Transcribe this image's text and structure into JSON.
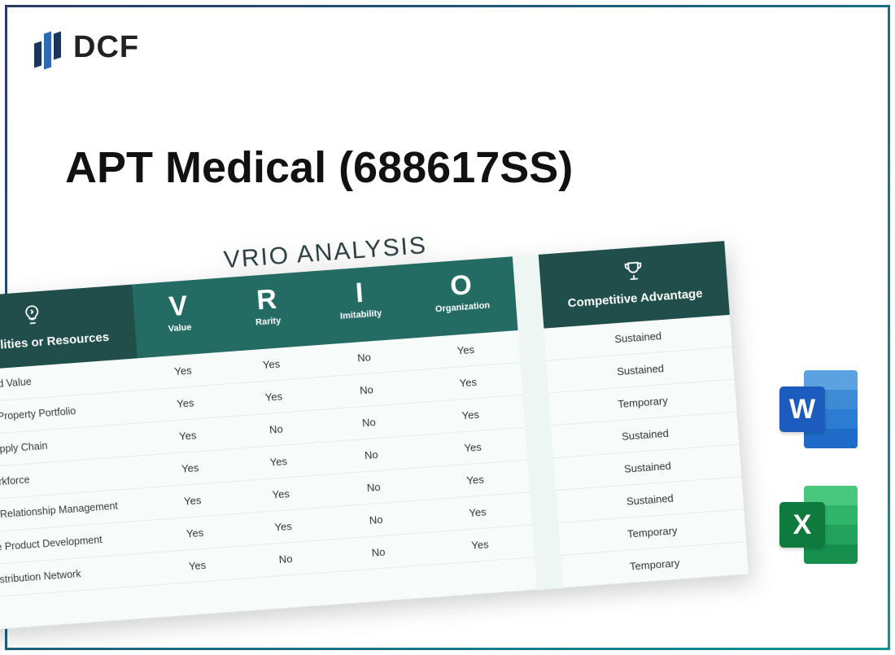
{
  "logo": {
    "text": "DCF"
  },
  "title": "APT Medical (688617SS)",
  "vrio": {
    "heading": "VRIO ANALYSIS",
    "colors": {
      "header_dark": "#1f4e4b",
      "header_mid": "#236b63",
      "row_bg": "#f7fbfa",
      "gap_bg": "#eef6f4",
      "title_color": "#2c3e40"
    },
    "columns": {
      "capabilities": {
        "label": "Capabilities or Resources",
        "icon": "lightbulb"
      },
      "v": {
        "big": "V",
        "sub": "Value"
      },
      "r": {
        "big": "R",
        "sub": "Rarity"
      },
      "i": {
        "big": "I",
        "sub": "Imitability"
      },
      "o": {
        "big": "O",
        "sub": "Organization"
      },
      "advantage": {
        "label": "Competitive Advantage",
        "icon": "trophy"
      }
    },
    "rows": [
      {
        "label": "Strong Brand Value",
        "v": "Yes",
        "r": "Yes",
        "i": "No",
        "o": "Yes",
        "adv": "Sustained"
      },
      {
        "label": "Intellectual Property Portfolio",
        "v": "Yes",
        "r": "Yes",
        "i": "No",
        "o": "Yes",
        "adv": "Sustained"
      },
      {
        "label": "Efficient Supply Chain",
        "v": "Yes",
        "r": "No",
        "i": "No",
        "o": "Yes",
        "adv": "Temporary"
      },
      {
        "label": "Skilled Workforce",
        "v": "Yes",
        "r": "Yes",
        "i": "No",
        "o": "Yes",
        "adv": "Sustained"
      },
      {
        "label": "Customer Relationship Management",
        "v": "Yes",
        "r": "Yes",
        "i": "No",
        "o": "Yes",
        "adv": "Sustained"
      },
      {
        "label": "Innovative Product Development",
        "v": "Yes",
        "r": "Yes",
        "i": "No",
        "o": "Yes",
        "adv": "Sustained"
      },
      {
        "label": "Global Distribution Network",
        "v": "Yes",
        "r": "No",
        "i": "No",
        "o": "Yes",
        "adv": "Temporary"
      },
      {
        "label": "",
        "v": "",
        "r": "",
        "i": "",
        "o": "",
        "adv": "Temporary"
      }
    ]
  },
  "file_icons": {
    "word": {
      "letter": "W"
    },
    "excel": {
      "letter": "X"
    }
  }
}
